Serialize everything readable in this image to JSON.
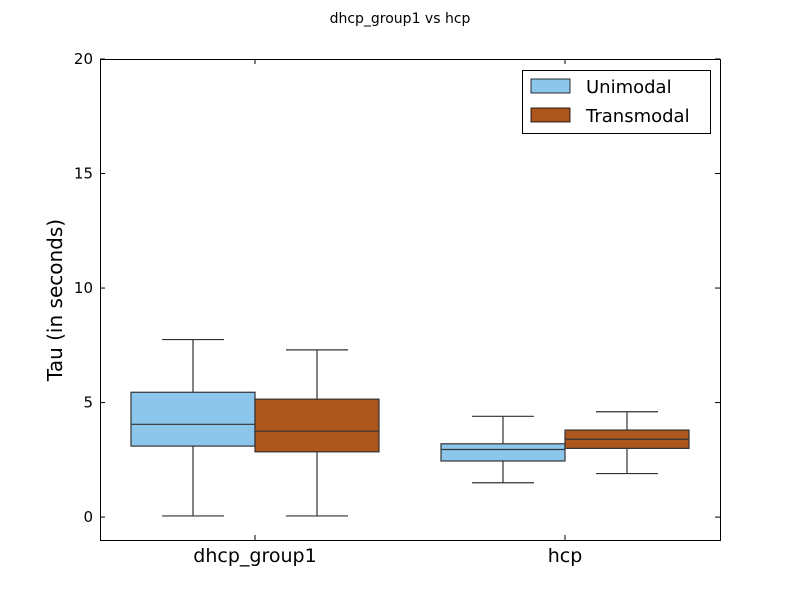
{
  "chart_data": {
    "type": "box",
    "title": "dhcp_group1 vs hcp",
    "xlabel": "",
    "ylabel": "Tau (in seconds)",
    "ylim": [
      -1,
      20
    ],
    "yticks": [
      0,
      5,
      10,
      15,
      20
    ],
    "categories": [
      "dhcp_group1",
      "hcp"
    ],
    "legend_position": "top-right",
    "grid": false,
    "series": [
      {
        "name": "Unimodal",
        "color": "#8cc7eb",
        "boxes": [
          {
            "whisker_low": 0.05,
            "q1": 3.1,
            "median": 4.05,
            "q3": 5.45,
            "whisker_high": 7.75
          },
          {
            "whisker_low": 1.5,
            "q1": 2.45,
            "median": 2.95,
            "q3": 3.2,
            "whisker_high": 4.4
          }
        ]
      },
      {
        "name": "Transmodal",
        "color": "#ad561d",
        "boxes": [
          {
            "whisker_low": 0.05,
            "q1": 2.85,
            "median": 3.75,
            "q3": 5.15,
            "whisker_high": 7.3
          },
          {
            "whisker_low": 1.9,
            "q1": 3.0,
            "median": 3.4,
            "q3": 3.8,
            "whisker_high": 4.6
          }
        ]
      }
    ]
  }
}
